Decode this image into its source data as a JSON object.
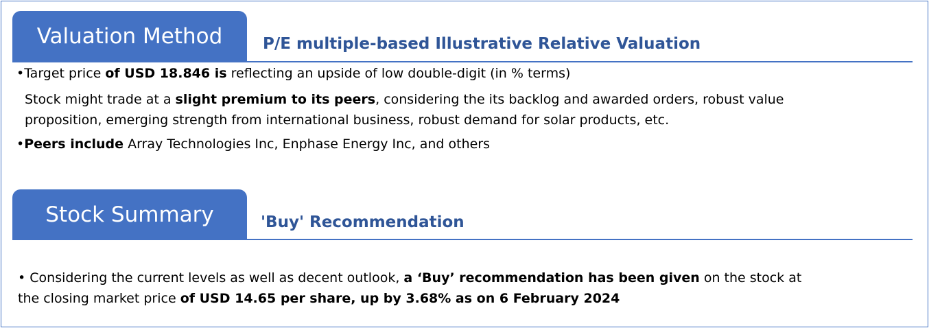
{
  "section1": {
    "tab": "Valuation Method",
    "heading": "P/E multiple-based Illustrative Relative Valuation",
    "b1": {
      "bullet": "•",
      "t1": "Target price ",
      "b1": "of USD 18.846 is",
      "t2": " reflecting an upside of low double-digit (in % terms)"
    },
    "p2": {
      "t1": "Stock might trade at a ",
      "b1": "slight premium to its peers",
      "t2": ", considering the its backlog and awarded orders, robust value",
      "line2": "proposition, emerging strength from international business, robust demand for solar products, etc."
    },
    "b3": {
      "bullet": "•",
      "b1": "Peers include",
      "t1": " Array Technologies Inc, Enphase Energy Inc, and others"
    }
  },
  "section2": {
    "tab": "Stock Summary",
    "heading": "'Buy' Recommendation",
    "b1": {
      "bullet": "•",
      "t1": " Considering the current levels as well as decent outlook, ",
      "b1": "a ‘Buy’ recommendation has been given",
      "t2": " on the stock at",
      "t3": "the closing market price ",
      "b2": "of USD 14.65 per share, up by 3.68% as on 6 February 2024"
    }
  },
  "colors": {
    "accent": "#4472C4",
    "heading": "#2F5597"
  }
}
